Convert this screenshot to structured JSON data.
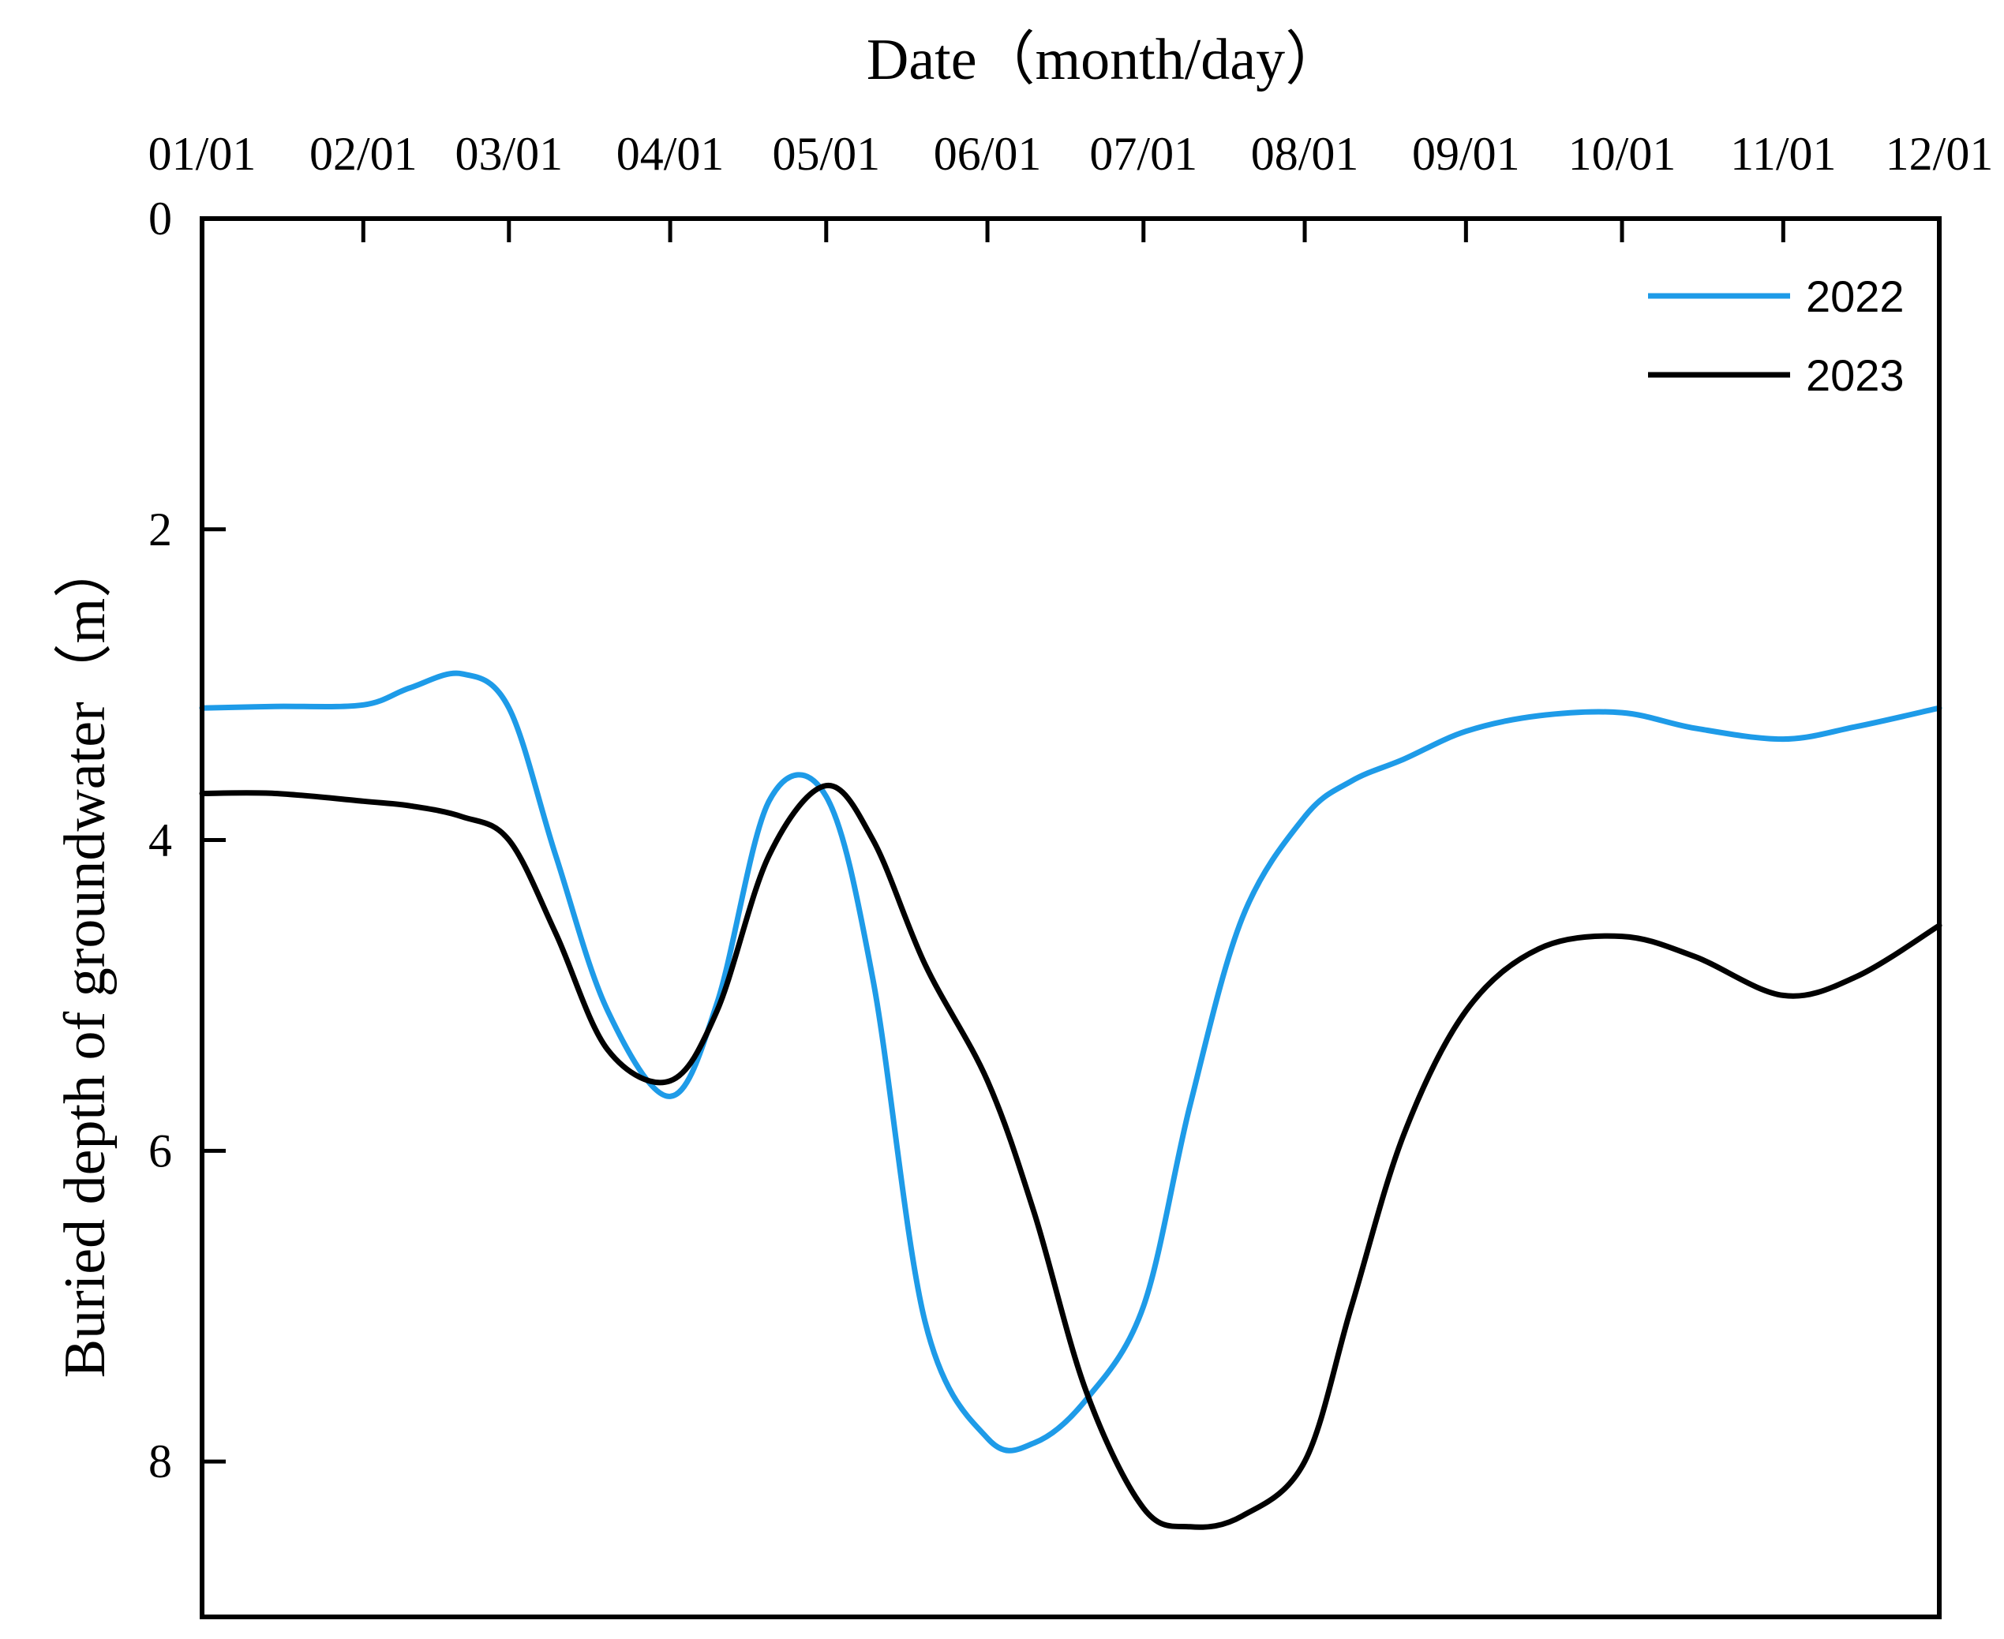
{
  "chart_data": {
    "type": "line",
    "xlabel": "Date（month/day）",
    "ylabel": "Buried depth of groundwater（m）",
    "x_ticks": [
      "01/01",
      "02/01",
      "03/01",
      "04/01",
      "05/01",
      "06/01",
      "07/01",
      "08/01",
      "09/01",
      "10/01",
      "11/01",
      "12/01"
    ],
    "xlim": [
      "01/01",
      "12/01"
    ],
    "y_ticks": [
      "0",
      "2",
      "4",
      "6",
      "8"
    ],
    "ylim": [
      0,
      9
    ],
    "y_inverted": true,
    "x_axis_position": "top",
    "grid": false,
    "legend_position": "top-right",
    "series": [
      {
        "name": "2022",
        "color": "#1e9be8",
        "x": [
          "01/01",
          "01/15",
          "02/01",
          "02/10",
          "02/20",
          "03/01",
          "03/10",
          "03/20",
          "04/01",
          "04/10",
          "04/20",
          "05/01",
          "05/10",
          "05/20",
          "06/01",
          "06/10",
          "06/20",
          "07/01",
          "07/10",
          "07/20",
          "08/01",
          "08/10",
          "08/20",
          "09/01",
          "09/15",
          "10/01",
          "10/15",
          "11/01",
          "11/15",
          "12/01"
        ],
        "y": [
          3.15,
          3.14,
          3.13,
          3.02,
          2.93,
          3.15,
          4.1,
          5.1,
          5.65,
          5.05,
          3.75,
          3.72,
          4.9,
          7.1,
          7.85,
          7.88,
          7.6,
          7.0,
          5.7,
          4.5,
          3.85,
          3.62,
          3.48,
          3.3,
          3.2,
          3.18,
          3.28,
          3.35,
          3.27,
          3.15
        ]
      },
      {
        "name": "2023",
        "color": "#000000",
        "x": [
          "01/01",
          "01/15",
          "02/01",
          "02/10",
          "02/20",
          "03/01",
          "03/10",
          "03/20",
          "04/01",
          "04/10",
          "04/20",
          "05/01",
          "05/10",
          "05/20",
          "06/01",
          "06/10",
          "06/20",
          "07/01",
          "07/10",
          "07/20",
          "08/01",
          "08/10",
          "08/20",
          "09/01",
          "09/15",
          "10/01",
          "10/15",
          "11/01",
          "11/15",
          "12/01"
        ],
        "y": [
          3.7,
          3.7,
          3.75,
          3.78,
          3.85,
          4.0,
          4.6,
          5.35,
          5.55,
          5.1,
          4.1,
          3.65,
          4.0,
          4.8,
          5.55,
          6.4,
          7.55,
          8.3,
          8.42,
          8.35,
          8.0,
          7.0,
          5.9,
          5.1,
          4.7,
          4.62,
          4.75,
          5.0,
          4.88,
          4.55
        ]
      }
    ]
  }
}
